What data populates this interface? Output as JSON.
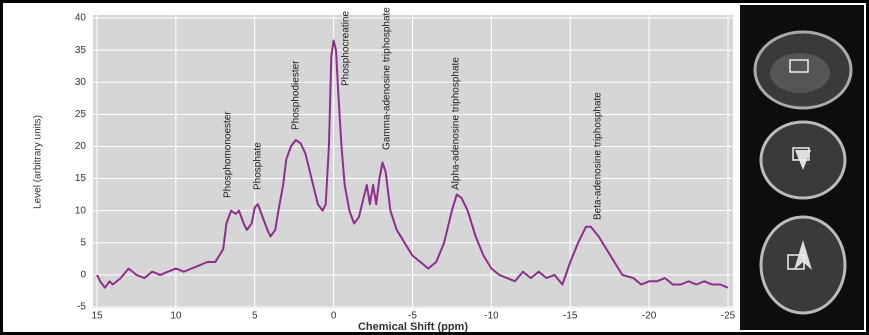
{
  "chart_data": {
    "type": "line",
    "x_label": "Chemical Shift (ppm)",
    "y_label": "Level (arbitrary units)",
    "x": [
      15,
      14.8,
      14.5,
      14.2,
      14,
      13.5,
      13,
      12.5,
      12,
      11.5,
      11,
      10.5,
      10,
      9.5,
      9,
      8.5,
      8,
      7.5,
      7,
      6.8,
      6.5,
      6.2,
      6,
      5.7,
      5.5,
      5.2,
      5,
      4.8,
      4.5,
      4.2,
      4,
      3.7,
      3.5,
      3.2,
      3,
      2.7,
      2.4,
      2.1,
      1.8,
      1.5,
      1.2,
      1,
      0.7,
      0.5,
      0.3,
      0.15,
      0,
      -0.15,
      -0.3,
      -0.5,
      -0.7,
      -1,
      -1.3,
      -1.6,
      -1.9,
      -2.1,
      -2.3,
      -2.5,
      -2.7,
      -2.9,
      -3.1,
      -3.3,
      -3.6,
      -4,
      -4.5,
      -5,
      -5.5,
      -6,
      -6.5,
      -7,
      -7.5,
      -7.8,
      -8.1,
      -8.5,
      -9,
      -9.5,
      -10,
      -10.5,
      -11,
      -11.5,
      -12,
      -12.5,
      -13,
      -13.5,
      -14,
      -14.5,
      -15,
      -15.5,
      -16,
      -16.3,
      -16.8,
      -17.3,
      -17.8,
      -18.3,
      -19,
      -19.5,
      -20,
      -20.5,
      -21,
      -21.5,
      -22,
      -22.5,
      -23,
      -23.5,
      -24,
      -24.5,
      -25
    ],
    "series": [
      {
        "color": "#8e2f8c",
        "values": [
          0,
          -1,
          -2,
          -1,
          -1.5,
          -0.5,
          1,
          0,
          -0.5,
          0.5,
          0,
          0.5,
          1,
          0.5,
          1,
          1.5,
          2,
          2,
          4,
          8,
          10,
          9.5,
          10,
          8,
          7,
          8,
          10.5,
          11,
          9,
          7,
          6,
          7,
          10,
          14,
          18,
          20,
          21,
          20.5,
          19,
          16,
          13,
          11,
          10,
          11,
          20,
          34,
          36.5,
          35,
          28,
          20,
          14,
          10,
          8,
          9,
          12,
          14,
          11,
          14,
          11,
          15,
          17.5,
          16,
          10,
          7,
          5,
          3,
          2,
          1,
          2,
          5,
          10,
          12.5,
          12,
          10,
          6,
          3,
          1,
          0,
          -0.5,
          -1,
          0.5,
          -0.5,
          0.5,
          -0.5,
          0,
          -1.5,
          2,
          5,
          7.5,
          7.5,
          6,
          4,
          2,
          0,
          -0.5,
          -1.5,
          -1,
          -1,
          -0.5,
          -1.5,
          -1.5,
          -1,
          -1.5,
          -1,
          -1.5,
          -1.5,
          -2
        ]
      }
    ],
    "xlim": [
      15,
      -25
    ],
    "xticks": [
      15,
      10,
      5,
      0,
      -5,
      -10,
      -15,
      -20,
      -25
    ],
    "ylim": [
      -5,
      40
    ],
    "yticks": [
      -5,
      0,
      5,
      10,
      15,
      20,
      25,
      30,
      35,
      40
    ],
    "grid": true,
    "annotations": [
      "Phosphomonoester",
      "Phosphate",
      "Phosphodiester",
      "Phosphocreatine",
      "Gamma-adenosine triphosphate",
      "Alpha-adenosine triphosphate",
      "Beta-adenosine triphosphate"
    ]
  }
}
